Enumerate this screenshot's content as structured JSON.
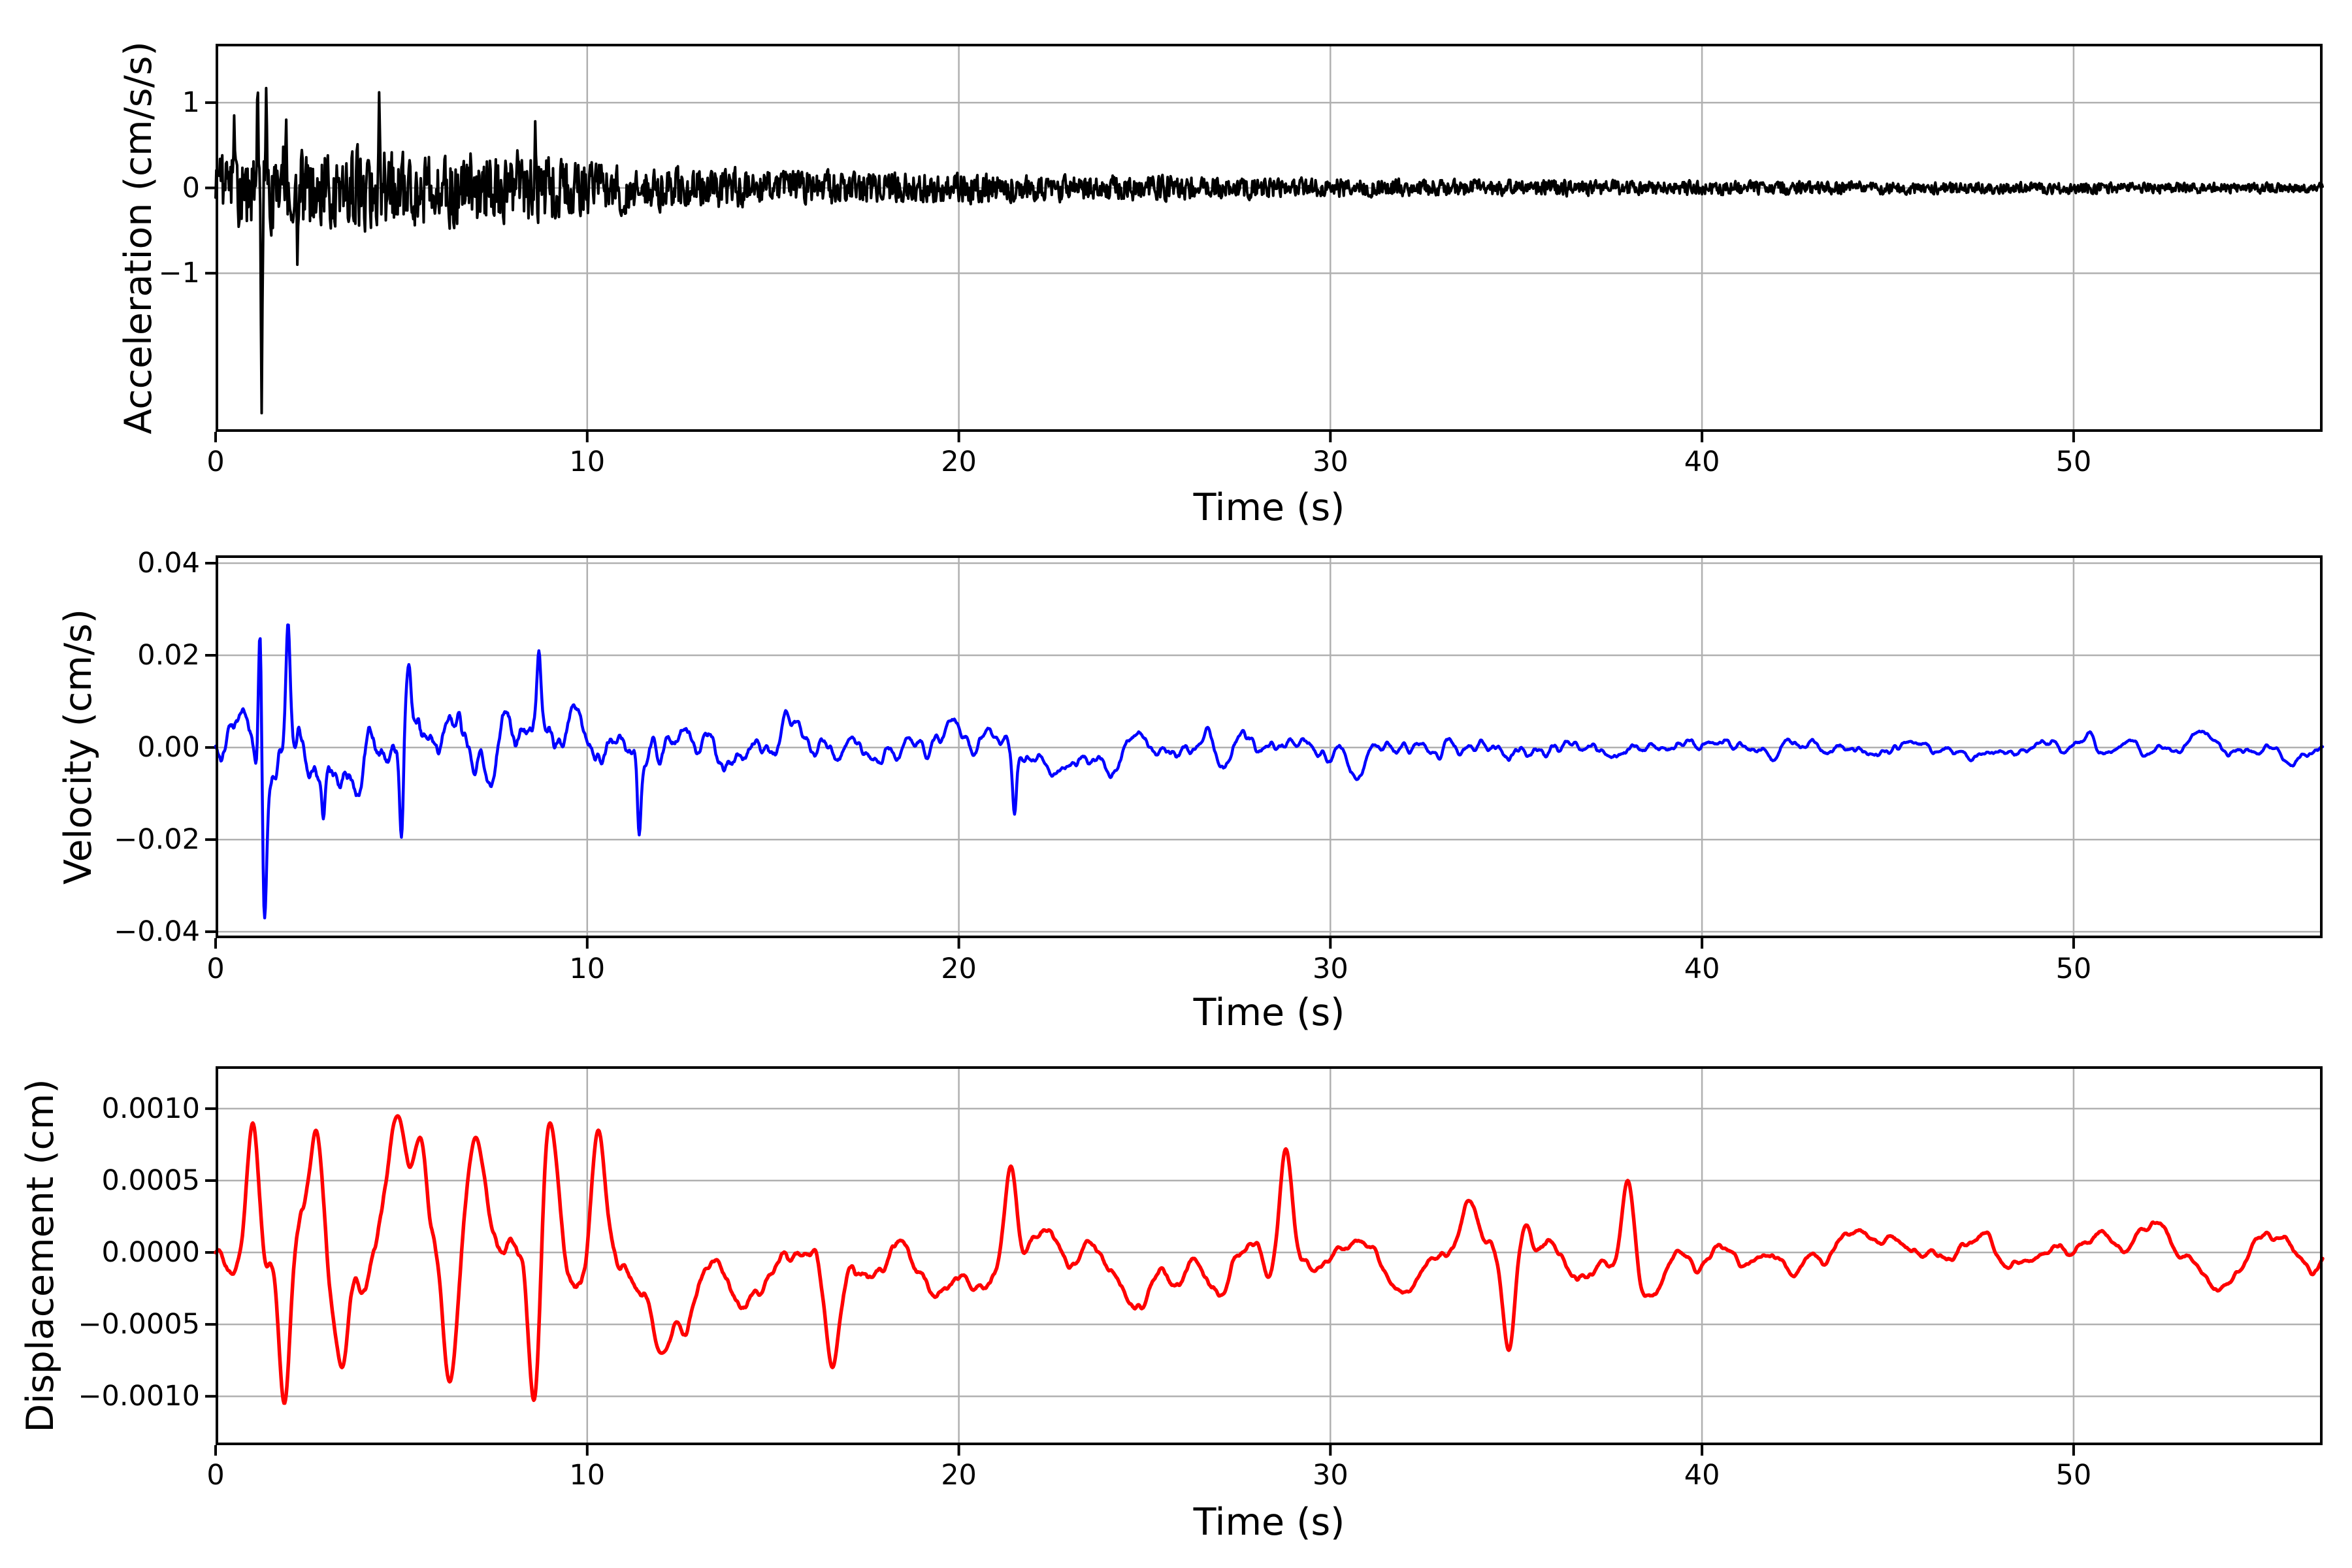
{
  "figure": {
    "background": "#ffffff",
    "grid_color": "#b0b0b0",
    "axis_color": "#000000",
    "text_color": "#000000"
  },
  "chart_data": [
    {
      "type": "line",
      "series_name": "Acceleration",
      "ylabel": "Acceleration (cm/s/s)",
      "xlabel": "Time (s)",
      "line_color": "#000000",
      "xlim": [
        0,
        56.7
      ],
      "ylim": [
        -2.86,
        1.69
      ],
      "xticks": [
        0,
        10,
        20,
        30,
        40,
        50
      ],
      "xtick_labels": [
        "0",
        "10",
        "20",
        "30",
        "40",
        "50"
      ],
      "yticks": [
        1,
        0,
        -1
      ],
      "ytick_labels": [
        "1",
        "0",
        "−1"
      ],
      "grid": true,
      "legend": null,
      "peak_max": 1.27,
      "peak_max_t": 1.13,
      "peak_min": -2.64,
      "peak_min_t": 1.24,
      "envelope": [
        [
          0,
          0.38
        ],
        [
          0.5,
          0.45
        ],
        [
          1.0,
          0.58
        ],
        [
          1.6,
          0.62
        ],
        [
          2.2,
          0.58
        ],
        [
          3,
          0.54
        ],
        [
          4,
          0.52
        ],
        [
          5,
          0.5
        ],
        [
          6,
          0.46
        ],
        [
          7,
          0.46
        ],
        [
          8,
          0.48
        ],
        [
          9,
          0.42
        ],
        [
          10,
          0.36
        ],
        [
          11,
          0.3
        ],
        [
          12,
          0.27
        ],
        [
          13,
          0.25
        ],
        [
          14,
          0.24
        ],
        [
          15,
          0.22
        ],
        [
          16,
          0.21
        ],
        [
          17,
          0.2
        ],
        [
          18,
          0.2
        ],
        [
          19,
          0.19
        ],
        [
          20,
          0.19
        ],
        [
          22,
          0.17
        ],
        [
          24,
          0.16
        ],
        [
          26,
          0.15
        ],
        [
          28,
          0.13
        ],
        [
          30,
          0.12
        ],
        [
          32,
          0.11
        ],
        [
          34,
          0.1
        ],
        [
          36,
          0.1
        ],
        [
          38,
          0.09
        ],
        [
          40,
          0.09
        ],
        [
          42,
          0.085
        ],
        [
          44,
          0.08
        ],
        [
          46,
          0.075
        ],
        [
          48,
          0.07
        ],
        [
          50,
          0.07
        ],
        [
          52,
          0.065
        ],
        [
          54,
          0.065
        ],
        [
          56.7,
          0.06
        ]
      ],
      "extremes": [
        [
          0.5,
          0.85
        ],
        [
          1.13,
          1.27
        ],
        [
          1.24,
          -2.64
        ],
        [
          1.36,
          1.17
        ],
        [
          1.9,
          0.8
        ],
        [
          2.2,
          -0.9
        ],
        [
          4.4,
          1.12
        ],
        [
          8.6,
          0.78
        ]
      ],
      "synthesis": {
        "seed": 1102,
        "samples_per_second": 50,
        "ema_alpha": 0.75,
        "ema_passes": 1,
        "rms_multiple": 2.0,
        "spike_sigma_s": 0.025
      }
    },
    {
      "type": "line",
      "series_name": "Velocity",
      "ylabel": "Velocity (cm/s)",
      "xlabel": "Time (s)",
      "line_color": "#0000ff",
      "xlim": [
        0,
        56.7
      ],
      "ylim": [
        -0.0414,
        0.0417
      ],
      "xticks": [
        0,
        10,
        20,
        30,
        40,
        50
      ],
      "xtick_labels": [
        "0",
        "10",
        "20",
        "30",
        "40",
        "50"
      ],
      "yticks": [
        0.04,
        0.02,
        0,
        -0.02,
        -0.04
      ],
      "ytick_labels": [
        "0.04",
        "0.02",
        "0.00",
        "−0.02",
        "−0.04"
      ],
      "grid": true,
      "legend": null,
      "peak_max": 0.027,
      "peak_max_t": 1.2,
      "peak_min": -0.037,
      "peak_min_t": 1.32,
      "envelope": [
        [
          0,
          0.011
        ],
        [
          0.7,
          0.013
        ],
        [
          1.5,
          0.015
        ],
        [
          2.5,
          0.013
        ],
        [
          3.5,
          0.012
        ],
        [
          5,
          0.013
        ],
        [
          6.5,
          0.012
        ],
        [
          8,
          0.012
        ],
        [
          9,
          0.011
        ],
        [
          10,
          0.01
        ],
        [
          11,
          0.009
        ],
        [
          12,
          0.0085
        ],
        [
          13,
          0.008
        ],
        [
          14,
          0.0075
        ],
        [
          15,
          0.007
        ],
        [
          16,
          0.0068
        ],
        [
          17,
          0.0065
        ],
        [
          18,
          0.0062
        ],
        [
          19,
          0.006
        ],
        [
          20,
          0.006
        ],
        [
          22,
          0.0055
        ],
        [
          24,
          0.0052
        ],
        [
          26,
          0.005
        ],
        [
          28,
          0.0048
        ],
        [
          30,
          0.0046
        ],
        [
          32,
          0.0044
        ],
        [
          34,
          0.0042
        ],
        [
          36,
          0.004
        ],
        [
          38,
          0.0038
        ],
        [
          40,
          0.0037
        ],
        [
          42,
          0.0036
        ],
        [
          44,
          0.0035
        ],
        [
          46,
          0.0034
        ],
        [
          48,
          0.0033
        ],
        [
          50,
          0.0032
        ],
        [
          52,
          0.0031
        ],
        [
          54,
          0.003
        ],
        [
          56.7,
          0.003
        ]
      ],
      "extremes": [
        [
          1.2,
          0.027
        ],
        [
          1.32,
          -0.037
        ],
        [
          1.95,
          0.027
        ],
        [
          2.9,
          -0.0155
        ],
        [
          5.0,
          -0.0195
        ],
        [
          5.2,
          0.018
        ],
        [
          8.7,
          0.021
        ],
        [
          11.4,
          -0.019
        ],
        [
          21.5,
          -0.0145
        ]
      ],
      "synthesis": {
        "seed": 2203,
        "samples_per_second": 50,
        "ema_alpha": 0.12,
        "ema_passes": 2,
        "rms_multiple": 2.4,
        "spike_sigma_s": 0.07
      }
    },
    {
      "type": "line",
      "series_name": "Displacement",
      "ylabel": "Displacement (cm)",
      "xlabel": "Time (s)",
      "line_color": "#ff0000",
      "xlim": [
        0,
        56.7
      ],
      "ylim": [
        -0.00134,
        0.001295
      ],
      "xticks": [
        0,
        10,
        20,
        30,
        40,
        50
      ],
      "xtick_labels": [
        "0",
        "10",
        "20",
        "30",
        "40",
        "50"
      ],
      "yticks": [
        0.001,
        0.0005,
        0,
        -0.0005,
        -0.001
      ],
      "ytick_labels": [
        "0.0010",
        "0.0005",
        "0.0000",
        "−0.0005",
        "−0.0010"
      ],
      "grid": true,
      "legend": null,
      "peak_max": 0.00095,
      "peak_max_t": 4.9,
      "peak_min": -0.00115,
      "peak_min_t": 8.6,
      "envelope": [
        [
          0,
          0.0005
        ],
        [
          1,
          0.0007
        ],
        [
          2,
          0.0007
        ],
        [
          3,
          0.00065
        ],
        [
          4,
          0.0007
        ],
        [
          5,
          0.00075
        ],
        [
          6,
          0.00065
        ],
        [
          7,
          0.0006
        ],
        [
          8,
          0.0007
        ],
        [
          9,
          0.0008
        ],
        [
          10,
          0.0007
        ],
        [
          11,
          0.0006
        ],
        [
          12,
          0.00055
        ],
        [
          13,
          0.0005
        ],
        [
          14,
          0.00045
        ],
        [
          15,
          0.00045
        ],
        [
          16,
          0.0005
        ],
        [
          17,
          0.00055
        ],
        [
          18,
          0.0005
        ],
        [
          19,
          0.00042
        ],
        [
          20,
          0.00042
        ],
        [
          21,
          0.00045
        ],
        [
          22,
          0.0004
        ],
        [
          23,
          0.00038
        ],
        [
          24,
          0.0004
        ],
        [
          25,
          0.00038
        ],
        [
          26,
          0.0004
        ],
        [
          27,
          0.00042
        ],
        [
          28,
          0.00045
        ],
        [
          29,
          0.00045
        ],
        [
          30,
          0.00035
        ],
        [
          31,
          0.0003
        ],
        [
          32,
          0.00032
        ],
        [
          33,
          0.00035
        ],
        [
          34,
          0.0004
        ],
        [
          35,
          0.00042
        ],
        [
          36,
          0.00038
        ],
        [
          37,
          0.00035
        ],
        [
          38,
          0.00032
        ],
        [
          39,
          0.0003
        ],
        [
          40,
          0.00028
        ],
        [
          42,
          0.0003
        ],
        [
          44,
          0.00028
        ],
        [
          46,
          0.0003
        ],
        [
          48,
          0.00028
        ],
        [
          50,
          0.0003
        ],
        [
          52,
          0.00028
        ],
        [
          54,
          0.0003
        ],
        [
          56.7,
          0.00028
        ]
      ],
      "extremes": [
        [
          1.0,
          0.0009
        ],
        [
          1.85,
          -0.00105
        ],
        [
          2.7,
          0.00085
        ],
        [
          3.4,
          -0.0008
        ],
        [
          4.9,
          0.00095
        ],
        [
          5.5,
          0.0008
        ],
        [
          6.3,
          -0.0009
        ],
        [
          7.0,
          0.0008
        ],
        [
          8.6,
          -0.00115
        ],
        [
          9.0,
          0.0009
        ],
        [
          10.3,
          0.00085
        ],
        [
          12.0,
          -0.0007
        ],
        [
          16.6,
          -0.0008
        ],
        [
          21.4,
          0.0006
        ],
        [
          28.8,
          0.00072
        ],
        [
          34.8,
          -0.00068
        ],
        [
          38.0,
          0.0005
        ]
      ],
      "synthesis": {
        "seed": 3304,
        "samples_per_second": 50,
        "ema_alpha": 0.05,
        "ema_passes": 2,
        "rms_multiple": 2.4,
        "spike_sigma_s": 0.25
      }
    }
  ]
}
